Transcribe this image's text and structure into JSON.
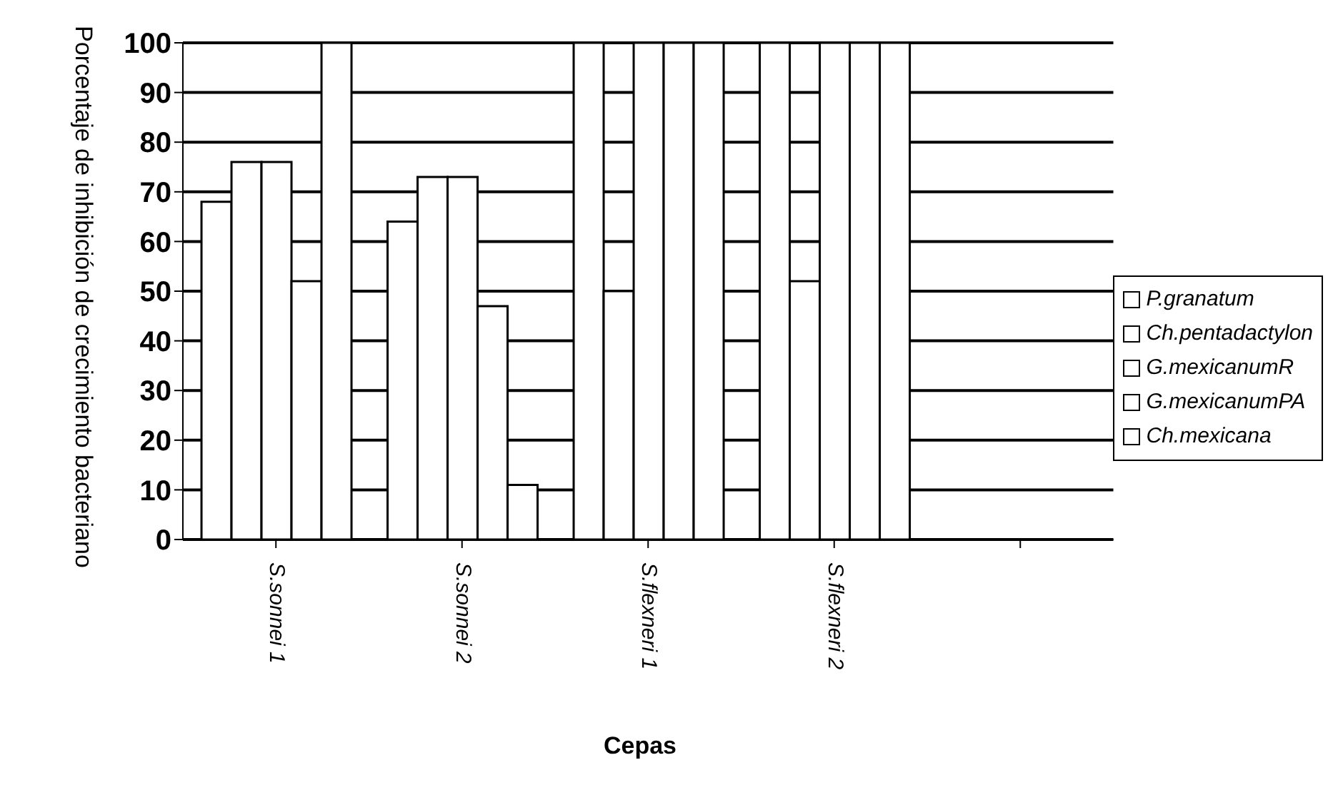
{
  "chart_data": {
    "type": "bar",
    "xlabel": "Cepas",
    "ylabel": "Porcentaje de inhibición de crecimiento bacteriano",
    "categories": [
      "S.sonnei 1",
      "S.sonnei 2",
      "S.flexneri 1",
      "S.flexneri 2",
      null
    ],
    "series": [
      {
        "name": "P.granatum",
        "color": "#ffffff",
        "values": [
          68,
          64,
          100,
          100,
          null
        ]
      },
      {
        "name": "Ch.pentadactylon",
        "color": "#ffffff",
        "values": [
          76,
          73,
          50,
          52,
          null
        ]
      },
      {
        "name": "G.mexicanumR",
        "color": "#ffffff",
        "values": [
          76,
          73,
          100,
          100,
          null
        ]
      },
      {
        "name": "G.mexicanumPA",
        "color": "#ffffff",
        "values": [
          52,
          47,
          100,
          100,
          null
        ]
      },
      {
        "name": "Ch.mexicana",
        "color": "#ffffff",
        "values": [
          100,
          11,
          100,
          100,
          null
        ]
      }
    ],
    "ylim": [
      0,
      100
    ],
    "yticks": [
      0,
      10,
      20,
      30,
      40,
      50,
      60,
      70,
      80,
      90,
      100
    ],
    "grid": "y",
    "legend": "right"
  }
}
